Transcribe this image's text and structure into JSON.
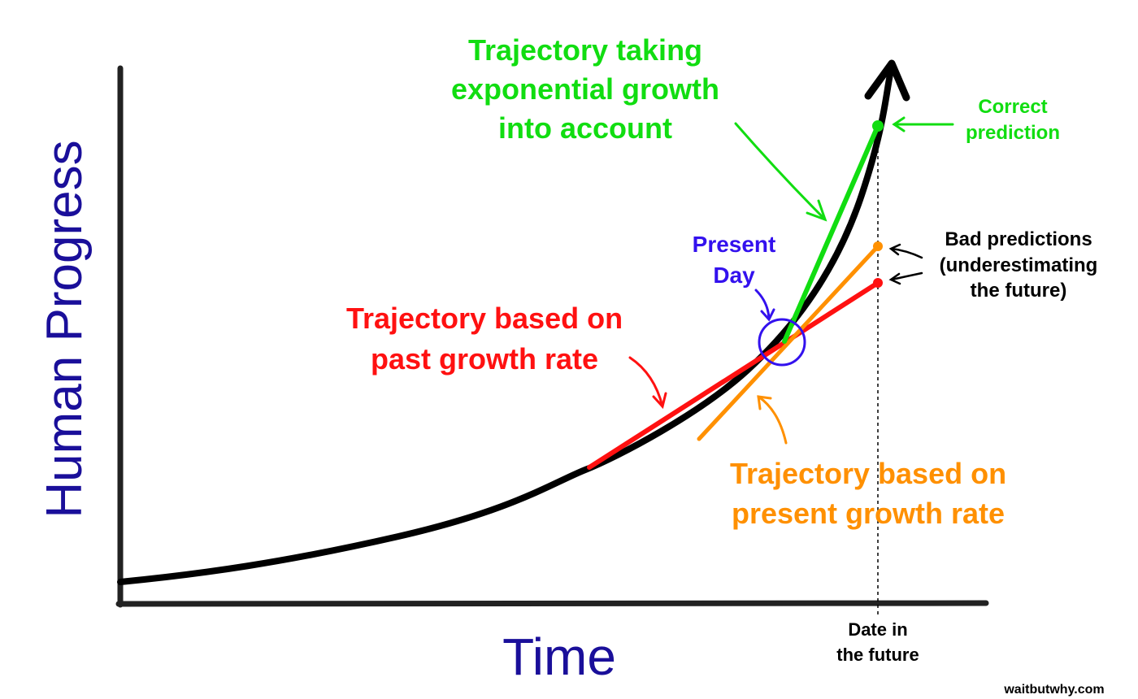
{
  "axes": {
    "y_label": "Human Progress",
    "x_label": "Time",
    "x_marker_label": [
      "Date in",
      "the future"
    ]
  },
  "annotations": {
    "exponential": [
      "Trajectory taking",
      "exponential growth",
      "into account"
    ],
    "correct": [
      "Correct",
      "prediction"
    ],
    "present_day": [
      "Present",
      "Day"
    ],
    "past_rate": [
      "Trajectory based on",
      "past growth rate"
    ],
    "present_rate": [
      "Trajectory based on",
      "present growth rate"
    ],
    "bad": [
      "Bad predictions",
      "(underestimating",
      "the future)"
    ]
  },
  "credit": "waitbutwhy.com",
  "colors": {
    "curve": "#000000",
    "exponential": "#11dd11",
    "past_rate": "#ff1111",
    "present_rate": "#ff9000",
    "present_day": "#3311ee",
    "axis_label": "#1a0f9a"
  }
}
